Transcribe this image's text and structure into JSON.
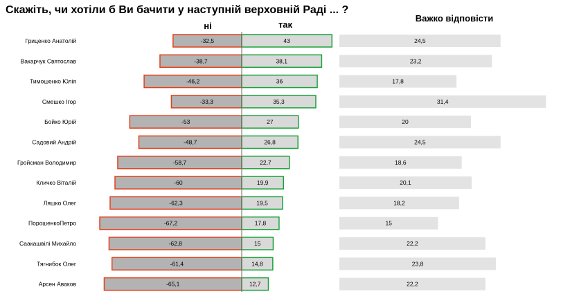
{
  "chart_data": {
    "type": "bar",
    "title": "Скажіть, чи хотіли б Ви бачити у наступній верховній Раді ...  ?",
    "series": [
      {
        "name": "ні",
        "color": "#e2401c",
        "fill": "#b3b3b3",
        "values": [
          -32.5,
          -38.7,
          -46.2,
          -33.3,
          -53,
          -48.7,
          -58.7,
          -60,
          -62.3,
          -67.2,
          -62.8,
          -61.4,
          -65.1
        ],
        "labels": [
          "-32,5",
          "-38,7",
          "-46,2",
          "-33,3",
          "-53",
          "-48,7",
          "-58,7",
          "-60",
          "-62,3",
          "-67,2",
          "-62,8",
          "-61,4",
          "-65,1"
        ]
      },
      {
        "name": "так",
        "color": "#1aa33a",
        "fill": "#d9d9d9",
        "values": [
          43,
          38.1,
          36,
          35.3,
          27,
          26.8,
          22.7,
          19.9,
          19.5,
          17.8,
          15,
          14.8,
          12.7
        ],
        "labels": [
          "43",
          "38,1",
          "36",
          "35,3",
          "27",
          "26,8",
          "22,7",
          "19,9",
          "19,5",
          "17,8",
          "15",
          "14,8",
          "12,7"
        ]
      },
      {
        "name": "Важко відповісти",
        "color": "#e3e3e3",
        "values": [
          24.5,
          23.2,
          17.8,
          31.4,
          20,
          24.5,
          18.6,
          20.1,
          18.2,
          15,
          22.2,
          23.8,
          22.2
        ],
        "labels": [
          "24,5",
          "23,2",
          "17,8",
          "31,4",
          "20",
          "24,5",
          "18,6",
          "20,1",
          "18,2",
          "15",
          "22,2",
          "23,8",
          "22,2"
        ]
      }
    ],
    "categories": [
      "Гриценко Анатолій",
      "Вакарчук Святослав",
      "Тимошенко Юлія",
      "Смешко Ігор",
      "Бойко Юрій",
      "Садовий Андрій",
      "Гройсман Володимир",
      "Кличко Віталій",
      "Ляшко Олег",
      "ПорошенкоПетро",
      "Саакашвілі Михайло",
      "Тягнибок Олег",
      "Арсен Аваков"
    ],
    "legend": "column headers above bars",
    "grid": false
  }
}
